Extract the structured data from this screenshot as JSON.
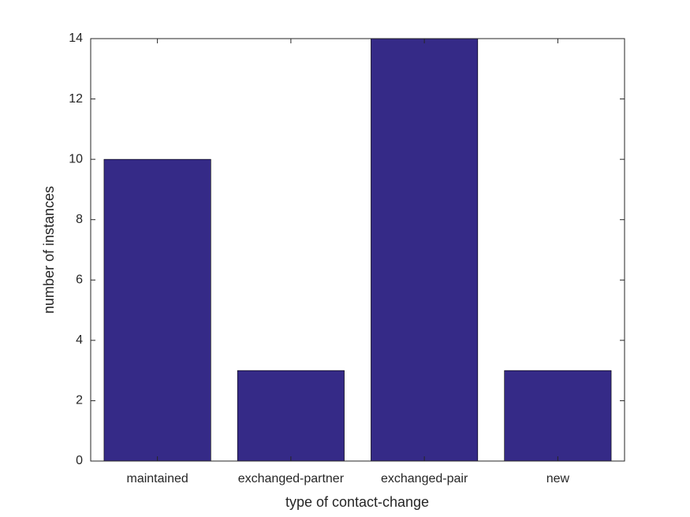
{
  "chart_data": {
    "type": "bar",
    "x_label": "type of contact-change",
    "y_label": "number of instances",
    "categories": [
      "maintained",
      "exchanged-partner",
      "exchanged-pair",
      "new"
    ],
    "values": [
      10,
      3,
      14,
      3
    ],
    "color": "#352a87",
    "ylim": [
      0,
      14
    ],
    "yticks": [
      0,
      2,
      4,
      6,
      8,
      10,
      12,
      14
    ],
    "grid": false
  }
}
